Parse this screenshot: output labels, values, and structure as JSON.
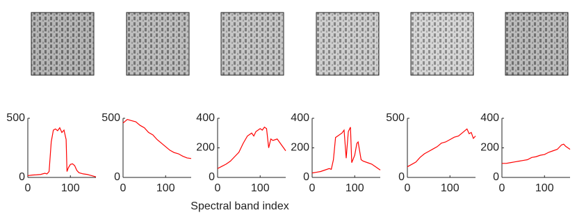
{
  "xlabel": "Spectral band index",
  "chart_data": [
    {
      "type": "line",
      "color": "#ff0000",
      "xlim": [
        0,
        160
      ],
      "xticks": [
        0,
        100
      ],
      "ylim": [
        0,
        500
      ],
      "yticks": [
        0,
        500
      ],
      "x": [
        0,
        10,
        20,
        30,
        40,
        45,
        50,
        55,
        60,
        65,
        70,
        75,
        80,
        85,
        90,
        92,
        95,
        100,
        105,
        110,
        115,
        120,
        130,
        140,
        150,
        160
      ],
      "values": [
        15,
        20,
        22,
        25,
        35,
        30,
        50,
        300,
        400,
        410,
        395,
        420,
        380,
        400,
        320,
        50,
        80,
        110,
        115,
        100,
        60,
        40,
        30,
        25,
        15,
        5
      ]
    },
    {
      "type": "line",
      "color": "#ff0000",
      "xlim": [
        0,
        160
      ],
      "xticks": [
        0,
        100
      ],
      "ylim": [
        0,
        500
      ],
      "yticks": [
        0,
        500
      ],
      "x": [
        0,
        10,
        20,
        30,
        40,
        50,
        60,
        70,
        80,
        90,
        100,
        110,
        120,
        130,
        140,
        150,
        160
      ],
      "values": [
        460,
        490,
        480,
        470,
        440,
        420,
        380,
        360,
        320,
        290,
        260,
        230,
        210,
        200,
        180,
        165,
        160
      ]
    },
    {
      "type": "line",
      "color": "#ff0000",
      "xlim": [
        0,
        160
      ],
      "xticks": [
        0,
        100
      ],
      "ylim": [
        0,
        400
      ],
      "yticks": [
        0,
        200,
        400
      ],
      "x": [
        0,
        10,
        20,
        30,
        40,
        50,
        60,
        70,
        80,
        85,
        90,
        100,
        105,
        110,
        115,
        120,
        125,
        130,
        140,
        150,
        160
      ],
      "values": [
        60,
        75,
        90,
        110,
        140,
        170,
        230,
        280,
        300,
        280,
        310,
        330,
        320,
        340,
        330,
        200,
        260,
        250,
        260,
        220,
        180
      ]
    },
    {
      "type": "line",
      "color": "#ff0000",
      "xlim": [
        0,
        160
      ],
      "xticks": [
        0,
        100
      ],
      "ylim": [
        0,
        400
      ],
      "yticks": [
        0,
        200,
        400
      ],
      "x": [
        0,
        10,
        20,
        30,
        40,
        45,
        50,
        55,
        60,
        70,
        75,
        80,
        85,
        90,
        93,
        100,
        105,
        108,
        115,
        120,
        130,
        140,
        150,
        160
      ],
      "values": [
        30,
        35,
        40,
        50,
        60,
        55,
        120,
        270,
        280,
        300,
        320,
        130,
        310,
        340,
        100,
        150,
        230,
        240,
        120,
        110,
        100,
        90,
        70,
        50
      ]
    },
    {
      "type": "line",
      "color": "#ff0000",
      "xlim": [
        0,
        160
      ],
      "xticks": [
        0,
        100
      ],
      "ylim": [
        0,
        500
      ],
      "yticks": [
        0,
        500
      ],
      "x": [
        0,
        10,
        20,
        30,
        40,
        50,
        60,
        70,
        80,
        90,
        100,
        110,
        120,
        130,
        140,
        145,
        150,
        155,
        160
      ],
      "values": [
        90,
        110,
        130,
        170,
        200,
        220,
        240,
        260,
        290,
        300,
        320,
        340,
        350,
        380,
        410,
        370,
        380,
        330,
        350
      ]
    },
    {
      "type": "line",
      "color": "#ff0000",
      "xlim": [
        0,
        160
      ],
      "xticks": [
        0,
        100
      ],
      "ylim": [
        0,
        400
      ],
      "yticks": [
        0,
        200,
        400
      ],
      "x": [
        0,
        10,
        20,
        30,
        40,
        50,
        60,
        70,
        80,
        90,
        100,
        110,
        120,
        130,
        140,
        145,
        150,
        155,
        160
      ],
      "values": [
        95,
        95,
        100,
        105,
        110,
        115,
        120,
        135,
        140,
        150,
        155,
        170,
        180,
        190,
        220,
        225,
        210,
        200,
        190
      ]
    }
  ]
}
